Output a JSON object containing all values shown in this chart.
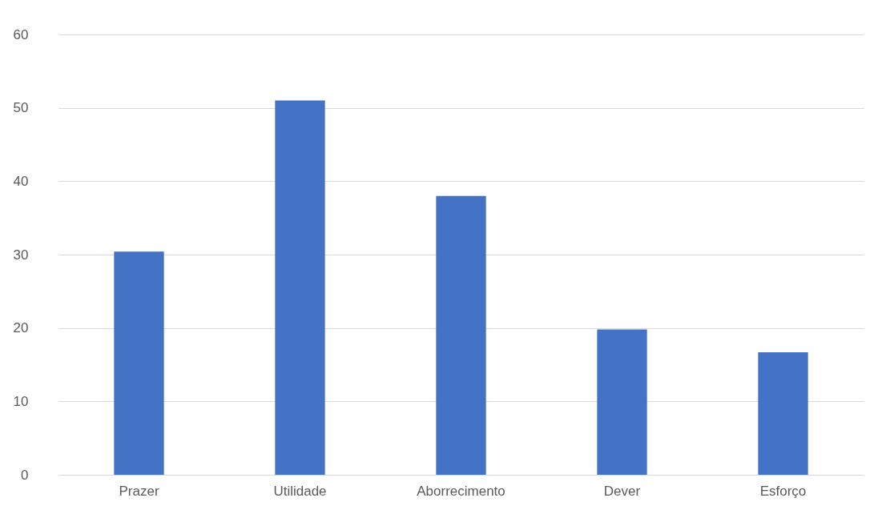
{
  "chart_data": {
    "type": "bar",
    "categories": [
      "Prazer",
      "Utilidade",
      "Aborrecimento",
      "Dever",
      "Esforço"
    ],
    "values": [
      30.4,
      51,
      38,
      19.8,
      16.7
    ],
    "color": "#4472c4",
    "ylim": [
      0,
      60
    ],
    "yticks": [
      0,
      10,
      20,
      30,
      40,
      50,
      60
    ],
    "grid": "y"
  }
}
